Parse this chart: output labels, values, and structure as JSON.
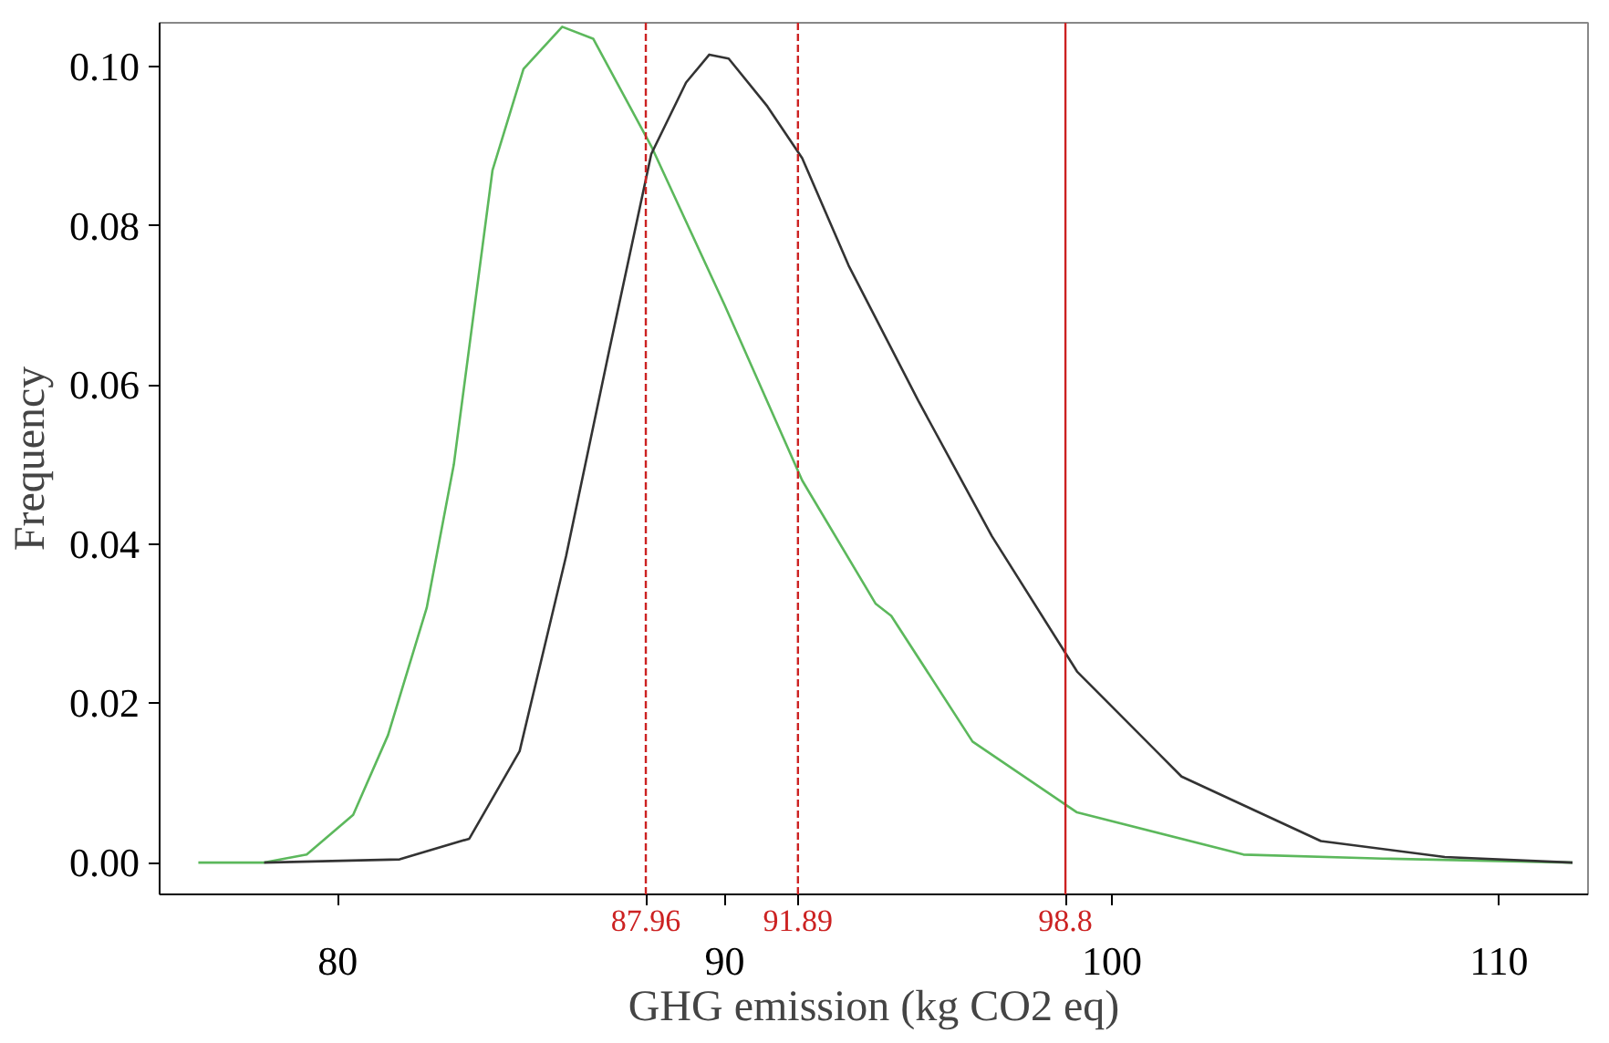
{
  "chart_data": {
    "type": "line",
    "xlabel": "GHG emission (kg CO2 eq)",
    "ylabel": "Frequency",
    "xlim": [
      75.4,
      112.3
    ],
    "ylim": [
      -0.004,
      0.1055
    ],
    "xticks": [
      80,
      90,
      100,
      110
    ],
    "yticks": [
      {
        "value": 0,
        "label": "0.00"
      },
      {
        "value": 0.02,
        "label": "0.02"
      },
      {
        "value": 0.04,
        "label": "0.04"
      },
      {
        "value": 0.06,
        "label": "0.06"
      },
      {
        "value": 0.08,
        "label": "0.08"
      },
      {
        "value": 0.1,
        "label": "0.10"
      }
    ],
    "grid": false,
    "marker": "none",
    "line_style": "solid",
    "series": [
      {
        "color": "#5cb85c",
        "x": [
          76.4,
          78.1,
          79.2,
          80.4,
          81.3,
          82.3,
          83.0,
          84.0,
          84.8,
          85.8,
          86.6,
          88.1,
          90.0,
          92.0,
          93.9,
          94.3,
          96.4,
          99.1,
          103.4,
          107.0,
          111.9
        ],
        "values": [
          0,
          0,
          0.001,
          0.006,
          0.016,
          0.032,
          0.05,
          0.087,
          0.0997,
          0.105,
          0.1035,
          0.09,
          0.07,
          0.048,
          0.0325,
          0.031,
          0.0152,
          0.0063,
          0.001,
          0.0005,
          0
        ]
      },
      {
        "color": "#333333",
        "x": [
          78.1,
          81.6,
          83.4,
          84.7,
          85.9,
          87.0,
          88.1,
          89.0,
          89.6,
          90.1,
          91.1,
          92.0,
          93.2,
          95.0,
          96.9,
          99.1,
          101.8,
          105.4,
          108.6,
          111.9
        ],
        "values": [
          0,
          0.0004,
          0.003,
          0.014,
          0.0385,
          0.064,
          0.089,
          0.098,
          0.1015,
          0.101,
          0.095,
          0.0885,
          0.075,
          0.058,
          0.041,
          0.024,
          0.0108,
          0.0027,
          0.0007,
          0
        ]
      }
    ],
    "ref_lines": [
      {
        "axis": "x",
        "value": 87.96,
        "label": "87.96",
        "color": "#cc2222",
        "line_style": "dashed"
      },
      {
        "axis": "x",
        "value": 91.89,
        "label": "91.89",
        "color": "#cc2222",
        "line_style": "dashed"
      },
      {
        "axis": "x",
        "value": 98.8,
        "label": "98.8",
        "color": "#cc2222",
        "line_style": "solid"
      }
    ]
  }
}
